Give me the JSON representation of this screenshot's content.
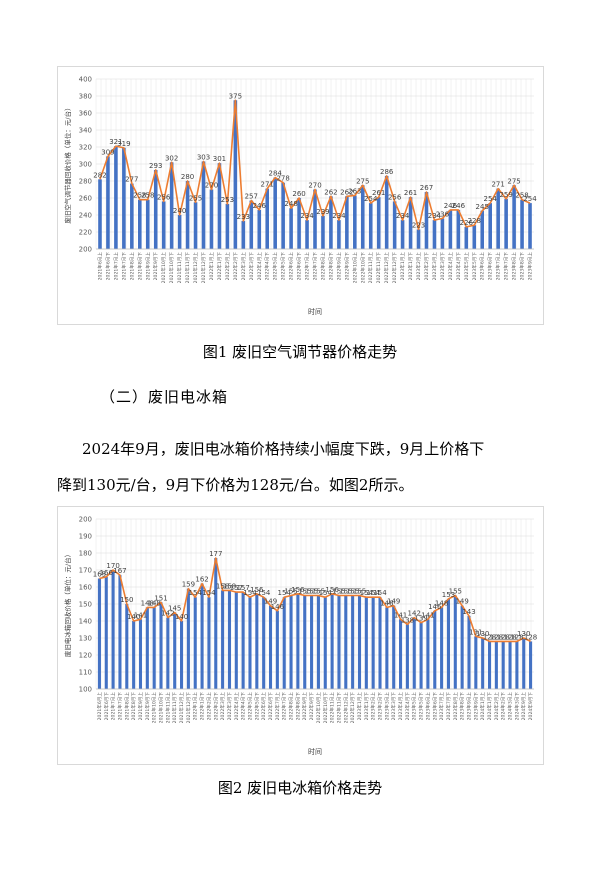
{
  "charts": [
    {
      "type": "bar",
      "chart_data": {
        "type": "bar",
        "overlay": "line",
        "ylabel": "废旧空气调节器回收价格（单位：元/台）",
        "xlabel": "时间",
        "ylim": [
          200,
          400
        ],
        "yticks": [
          200,
          220,
          240,
          260,
          280,
          300,
          320,
          340,
          360,
          380,
          400
        ],
        "grid": true,
        "bar_color": "#4472c4",
        "line_color": "#ed7d31",
        "categories": [
          "2021年6月上",
          "2021年6月下",
          "2021年7月上",
          "2021年7月下",
          "2021年8月上",
          "2021年8月下",
          "2021年9月上",
          "2021年9月下",
          "2021年10月上",
          "2021年10月下",
          "2021年11月上",
          "2021年11月下",
          "2021年12月上",
          "2021年12月下",
          "2022年1月上",
          "2022年1月下",
          "2022年2月上",
          "2022年2月下",
          "2022年3月上",
          "2022年3月下",
          "2022年4月上",
          "2022年4月下",
          "2022年5月上",
          "2022年5月下",
          "2022年6月上",
          "2022年6月下",
          "2022年7月上",
          "2022年7月下",
          "2022年8月上",
          "2022年8月下",
          "2022年9月上",
          "2022年9月下",
          "2022年10月上",
          "2022年10月下",
          "2022年11月上",
          "2022年11月下",
          "2022年12月上",
          "2022年12月下",
          "2023年1月上",
          "2023年1月下",
          "2023年2月上",
          "2023年2月下",
          "2023年3月上",
          "2023年3月下",
          "2023年4月上",
          "2023年4月下",
          "2023年5月上",
          "2023年5月下",
          "2023年6月上",
          "2023年6月下",
          "2023年7月上",
          "2023年7月下",
          "2023年8月上",
          "2023年8月下",
          "2023年9月上"
        ],
        "values": [
          282,
          309,
          321,
          319,
          277,
          258,
          258,
          293,
          256,
          302,
          240,
          280,
          255,
          303,
          270,
          301,
          253,
          375,
          233,
          257,
          246,
          271,
          284,
          278,
          248,
          260,
          234,
          270,
          239,
          262,
          234,
          262,
          263,
          275,
          254,
          261,
          286,
          256,
          234,
          261,
          223,
          267,
          234,
          236,
          246,
          246,
          226,
          228,
          245,
          254,
          271,
          259,
          275,
          258,
          254
        ]
      }
    },
    {
      "type": "bar",
      "chart_data": {
        "type": "bar",
        "overlay": "line",
        "ylabel": "废旧电冰箱回收价格（单位：元/台）",
        "xlabel": "时间",
        "ylim": [
          100,
          200
        ],
        "yticks": [
          100,
          110,
          120,
          130,
          140,
          150,
          160,
          170,
          180,
          190,
          200
        ],
        "grid": true,
        "bar_color": "#4472c4",
        "line_color": "#ed7d31",
        "categories": [
          "2021年6月上",
          "2021年6月下",
          "2021年7月上",
          "2021年7月下",
          "2021年8月上",
          "2021年8月下",
          "2021年9月上",
          "2021年9月下",
          "2021年10月上",
          "2021年10月下",
          "2021年11月上",
          "2021年11月下",
          "2021年12月上",
          "2021年12月下",
          "2022年1月上",
          "2022年1月下",
          "2022年2月上",
          "2022年2月下",
          "2022年3月上",
          "2022年3月下",
          "2022年4月上",
          "2022年4月下",
          "2022年5月上",
          "2022年5月下",
          "2022年6月上",
          "2022年6月下",
          "2022年7月上",
          "2022年7月下",
          "2022年8月上",
          "2022年8月下",
          "2022年9月上",
          "2022年9月下",
          "2022年10月上",
          "2022年10月下",
          "2022年11月上",
          "2022年11月下",
          "2022年12月上",
          "2022年12月下",
          "2023年1月上",
          "2023年1月下",
          "2023年2月上",
          "2023年2月下",
          "2023年3月上",
          "2023年3月下",
          "2023年4月上",
          "2023年4月下",
          "2023年5月上",
          "2023年5月下",
          "2023年6月上",
          "2023年6月下",
          "2023年7月上",
          "2023年7月下",
          "2023年8月上",
          "2023年8月下",
          "2023年9月上",
          "2023年9月下",
          "2024年1月上",
          "2024年1月下",
          "2024年2月上",
          "2024年2月下",
          "2024年3月上",
          "2024年3月下",
          "2024年9月上",
          "2024年9月下"
        ],
        "values": [
          165,
          166,
          170,
          167,
          150,
          140,
          141,
          148,
          148,
          151,
          142,
          145,
          140,
          159,
          154,
          162,
          154,
          177,
          158,
          158,
          157,
          157,
          154,
          156,
          154,
          149,
          146,
          154,
          155,
          156,
          155,
          155,
          155,
          154,
          156,
          155,
          155,
          155,
          155,
          154,
          154,
          154,
          148,
          149,
          141,
          138,
          142,
          139,
          141,
          146,
          148,
          153,
          155,
          149,
          143,
          131,
          130,
          128,
          128,
          128,
          128,
          128,
          130,
          128
        ]
      }
    }
  ],
  "caption1": "图1  废旧空气调节器价格走势",
  "heading": "（二）废旧电冰箱",
  "para1": "2024年9月，废旧电冰箱价格持续小幅度下跌，9月上价格下",
  "para2": "降到130元/台，9月下价格为128元/台。如图2所示。",
  "caption2": "图2  废旧电冰箱价格走势"
}
